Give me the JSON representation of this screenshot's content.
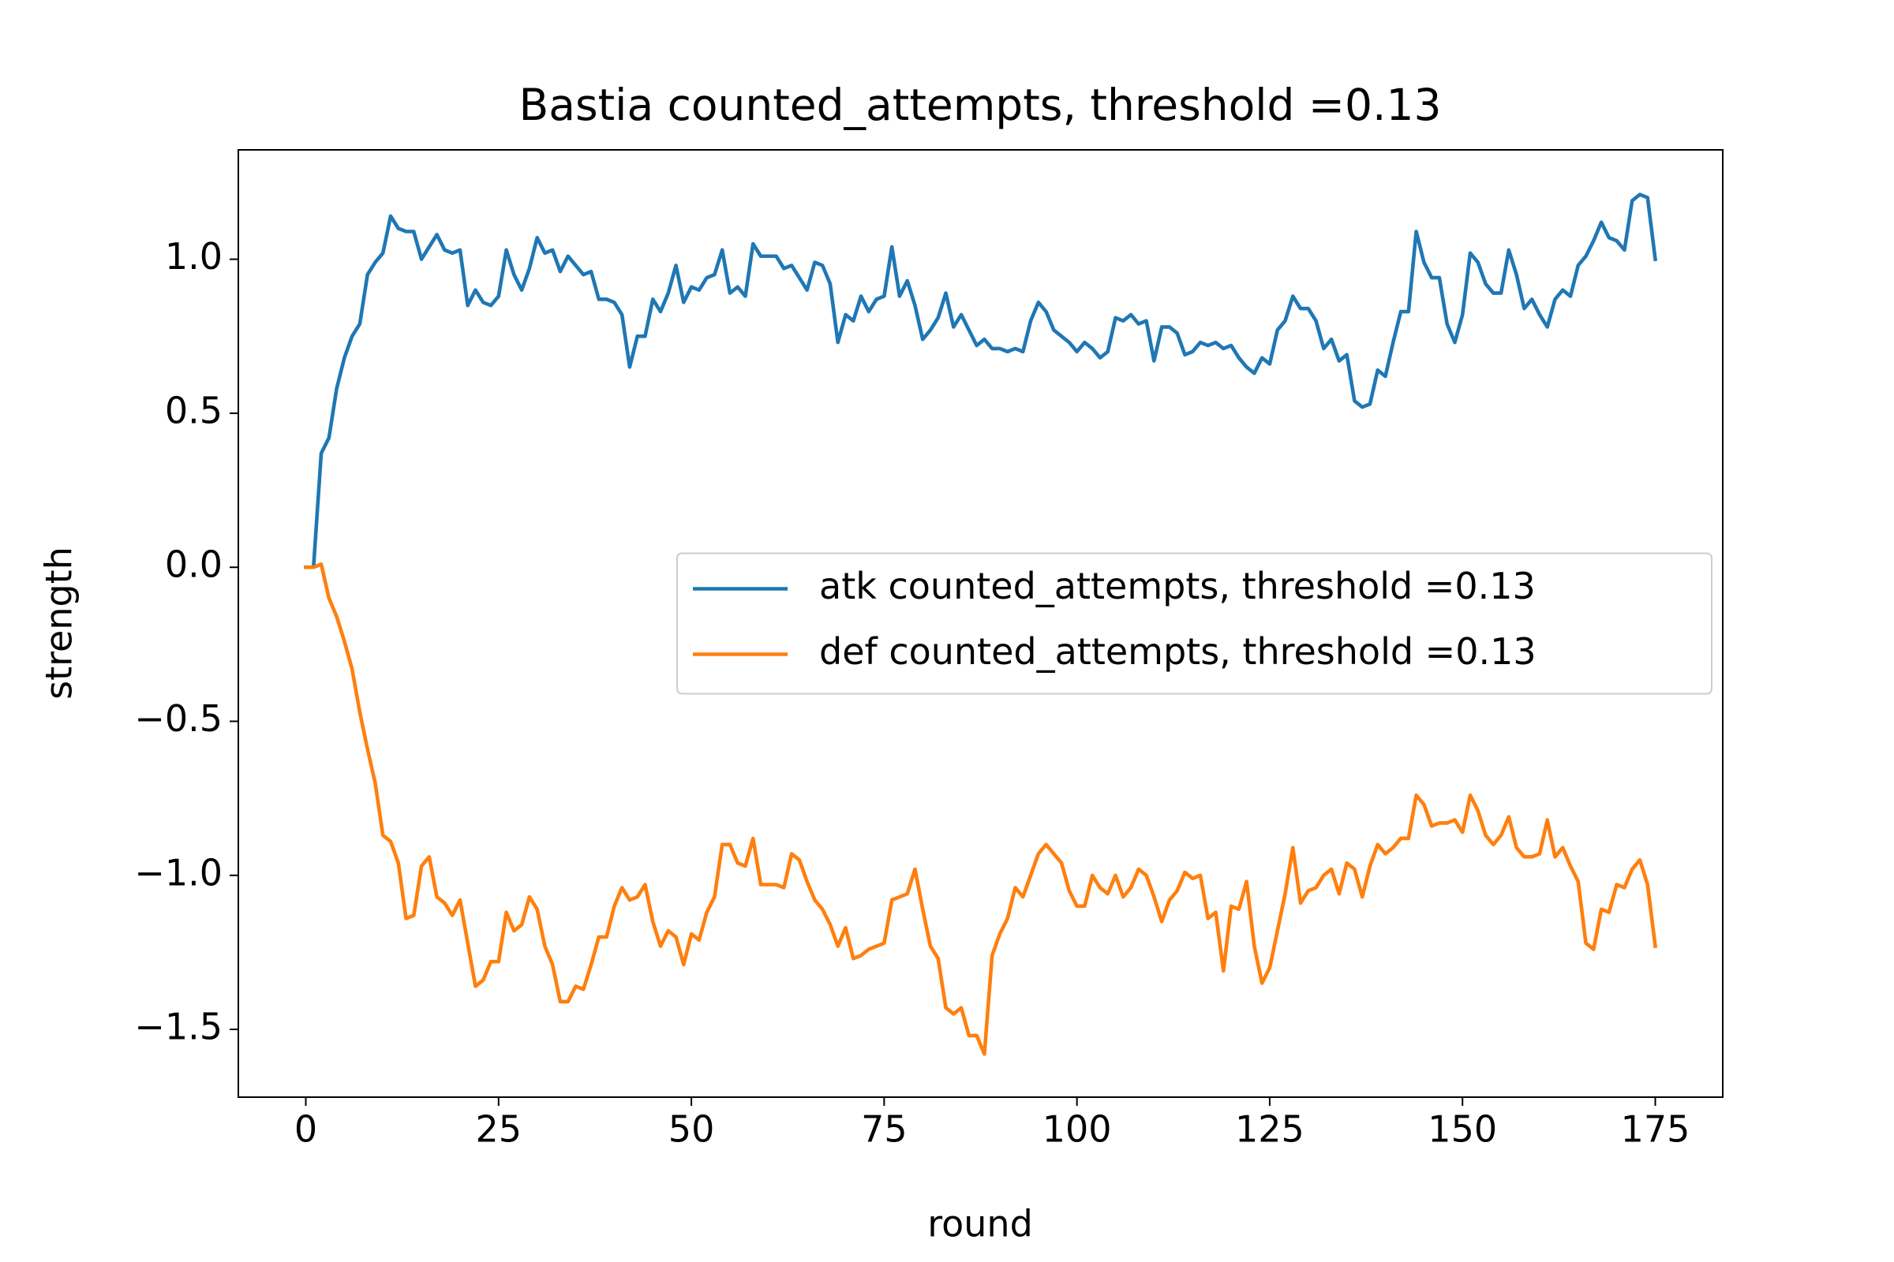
{
  "chart_data": {
    "type": "line",
    "title": "Bastia counted_attempts, threshold =0.13",
    "x_label": "round",
    "y_label": "strength",
    "x": [
      0,
      1,
      2,
      3,
      4,
      5,
      6,
      7,
      8,
      9,
      10,
      11,
      12,
      13,
      14,
      15,
      16,
      17,
      18,
      19,
      20,
      21,
      22,
      23,
      24,
      25,
      26,
      27,
      28,
      29,
      30,
      31,
      32,
      33,
      34,
      35,
      36,
      37,
      38,
      39,
      40,
      41,
      42,
      43,
      44,
      45,
      46,
      47,
      48,
      49,
      50,
      51,
      52,
      53,
      54,
      55,
      56,
      57,
      58,
      59,
      60,
      61,
      62,
      63,
      64,
      65,
      66,
      67,
      68,
      69,
      70,
      71,
      72,
      73,
      74,
      75,
      76,
      77,
      78,
      79,
      80,
      81,
      82,
      83,
      84,
      85,
      86,
      87,
      88,
      89,
      90,
      91,
      92,
      93,
      94,
      95,
      96,
      97,
      98,
      99,
      100,
      101,
      102,
      103,
      104,
      105,
      106,
      107,
      108,
      109,
      110,
      111,
      112,
      113,
      114,
      115,
      116,
      117,
      118,
      119,
      120,
      121,
      122,
      123,
      124,
      125,
      126,
      127,
      128,
      129,
      130,
      131,
      132,
      133,
      134,
      135,
      136,
      137,
      138,
      139,
      140,
      141,
      142,
      143,
      144,
      145,
      146,
      147,
      148,
      149,
      150,
      151,
      152,
      153,
      154,
      155,
      156,
      157,
      158,
      159,
      160,
      161,
      162,
      163,
      164,
      165,
      166,
      167,
      168,
      169,
      170,
      171,
      172,
      173,
      174,
      175
    ],
    "series": [
      {
        "name": "atk counted_attempts, threshold =0.13",
        "color": "#1f77b4",
        "values": [
          0.0,
          0.0,
          0.37,
          0.42,
          0.58,
          0.68,
          0.75,
          0.79,
          0.95,
          0.99,
          1.02,
          1.14,
          1.1,
          1.09,
          1.09,
          1.0,
          1.04,
          1.08,
          1.03,
          1.02,
          1.03,
          0.85,
          0.9,
          0.86,
          0.85,
          0.88,
          1.03,
          0.95,
          0.9,
          0.97,
          1.07,
          1.02,
          1.03,
          0.96,
          1.01,
          0.98,
          0.95,
          0.96,
          0.87,
          0.87,
          0.86,
          0.82,
          0.65,
          0.75,
          0.75,
          0.87,
          0.83,
          0.89,
          0.98,
          0.86,
          0.91,
          0.9,
          0.94,
          0.95,
          1.03,
          0.89,
          0.91,
          0.88,
          1.05,
          1.01,
          1.01,
          1.01,
          0.97,
          0.98,
          0.94,
          0.9,
          0.99,
          0.98,
          0.92,
          0.73,
          0.82,
          0.8,
          0.88,
          0.83,
          0.87,
          0.88,
          1.04,
          0.88,
          0.93,
          0.85,
          0.74,
          0.77,
          0.81,
          0.89,
          0.78,
          0.82,
          0.77,
          0.72,
          0.74,
          0.71,
          0.71,
          0.7,
          0.71,
          0.7,
          0.8,
          0.86,
          0.83,
          0.77,
          0.75,
          0.73,
          0.7,
          0.73,
          0.71,
          0.68,
          0.7,
          0.81,
          0.8,
          0.82,
          0.79,
          0.8,
          0.67,
          0.78,
          0.78,
          0.76,
          0.69,
          0.7,
          0.73,
          0.72,
          0.73,
          0.71,
          0.72,
          0.68,
          0.65,
          0.63,
          0.68,
          0.66,
          0.77,
          0.8,
          0.88,
          0.84,
          0.84,
          0.8,
          0.71,
          0.74,
          0.67,
          0.69,
          0.54,
          0.52,
          0.53,
          0.64,
          0.62,
          0.73,
          0.83,
          0.83,
          1.09,
          0.99,
          0.94,
          0.94,
          0.79,
          0.73,
          0.82,
          1.02,
          0.99,
          0.92,
          0.89,
          0.89,
          1.03,
          0.95,
          0.84,
          0.87,
          0.82,
          0.78,
          0.87,
          0.9,
          0.88,
          0.98,
          1.01,
          1.06,
          1.12,
          1.07,
          1.06,
          1.03,
          1.19,
          1.21,
          1.2,
          1.0
        ]
      },
      {
        "name": "def counted_attempts, threshold =0.13",
        "color": "#ff7f0e",
        "values": [
          0.0,
          0.0,
          0.01,
          -0.1,
          -0.16,
          -0.24,
          -0.33,
          -0.47,
          -0.59,
          -0.7,
          -0.87,
          -0.89,
          -0.96,
          -1.14,
          -1.13,
          -0.97,
          -0.94,
          -1.07,
          -1.09,
          -1.13,
          -1.08,
          -1.22,
          -1.36,
          -1.34,
          -1.28,
          -1.28,
          -1.12,
          -1.18,
          -1.16,
          -1.07,
          -1.11,
          -1.23,
          -1.29,
          -1.41,
          -1.41,
          -1.36,
          -1.37,
          -1.29,
          -1.2,
          -1.2,
          -1.1,
          -1.04,
          -1.08,
          -1.07,
          -1.03,
          -1.15,
          -1.23,
          -1.18,
          -1.2,
          -1.29,
          -1.19,
          -1.21,
          -1.12,
          -1.07,
          -0.9,
          -0.9,
          -0.96,
          -0.97,
          -0.88,
          -1.03,
          -1.03,
          -1.03,
          -1.04,
          -0.93,
          -0.95,
          -1.02,
          -1.08,
          -1.11,
          -1.16,
          -1.23,
          -1.17,
          -1.27,
          -1.26,
          -1.24,
          -1.23,
          -1.22,
          -1.08,
          -1.07,
          -1.06,
          -0.98,
          -1.11,
          -1.23,
          -1.27,
          -1.43,
          -1.45,
          -1.43,
          -1.52,
          -1.52,
          -1.58,
          -1.26,
          -1.19,
          -1.14,
          -1.04,
          -1.07,
          -1.0,
          -0.93,
          -0.9,
          -0.93,
          -0.96,
          -1.05,
          -1.1,
          -1.1,
          -1.0,
          -1.04,
          -1.06,
          -1.0,
          -1.07,
          -1.04,
          -0.98,
          -1.0,
          -1.07,
          -1.15,
          -1.08,
          -1.05,
          -0.99,
          -1.01,
          -1.0,
          -1.14,
          -1.12,
          -1.31,
          -1.1,
          -1.11,
          -1.02,
          -1.23,
          -1.35,
          -1.3,
          -1.18,
          -1.06,
          -0.91,
          -1.09,
          -1.05,
          -1.04,
          -1.0,
          -0.98,
          -1.06,
          -0.96,
          -0.98,
          -1.07,
          -0.97,
          -0.9,
          -0.93,
          -0.91,
          -0.88,
          -0.88,
          -0.74,
          -0.77,
          -0.84,
          -0.83,
          -0.83,
          -0.82,
          -0.86,
          -0.74,
          -0.79,
          -0.87,
          -0.9,
          -0.87,
          -0.81,
          -0.91,
          -0.94,
          -0.94,
          -0.93,
          -0.82,
          -0.94,
          -0.91,
          -0.97,
          -1.02,
          -1.22,
          -1.24,
          -1.11,
          -1.12,
          -1.03,
          -1.04,
          -0.98,
          -0.95,
          -1.03,
          -1.23
        ]
      }
    ],
    "xlim": [
      -8.75,
      183.75
    ],
    "xticks": [
      0,
      25,
      50,
      75,
      100,
      125,
      150,
      175
    ],
    "ylim": [
      -1.72,
      1.355
    ],
    "yticks": [
      {
        "value": -1.5,
        "label": "−1.5"
      },
      {
        "value": -1.0,
        "label": "−1.0"
      },
      {
        "value": -0.5,
        "label": "−0.5"
      },
      {
        "value": 0,
        "label": "0.0"
      },
      0.5,
      {
        "value": 1.0,
        "label": "1.0"
      }
    ],
    "grid": false,
    "legend_loc": "center right"
  }
}
